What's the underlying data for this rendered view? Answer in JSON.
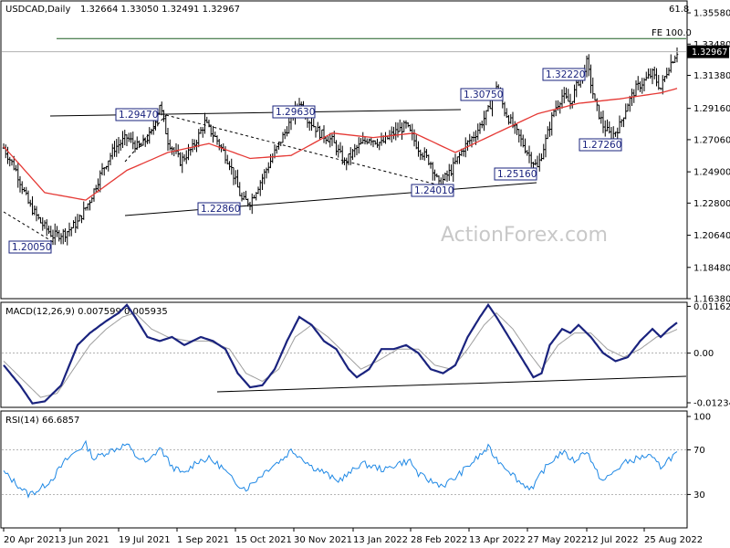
{
  "chart_data": [
    {
      "type": "ohlc",
      "title": "USDCAD,Daily",
      "ohlc_readout": "1.32664 1.33050 1.32491 1.32967",
      "last_price": "1.32967",
      "ylim": [
        1.1638,
        1.3638
      ],
      "y_ticks": [
        "1.35580",
        "1.33480",
        "1.31380",
        "1.29160",
        "1.27060",
        "1.24900",
        "1.22800",
        "1.20640",
        "1.18480",
        "1.16380"
      ],
      "x_labels": [
        "20 Apr 2021",
        "3 Jun 2021",
        "19 Jul 2021",
        "1 Sep 2021",
        "15 Oct 2021",
        "30 Nov 2021",
        "13 Jan 2022",
        "28 Feb 2022",
        "13 Apr 2022",
        "27 May 2022",
        "12 Jul 2022",
        "25 Aug 2022"
      ],
      "price_path": [
        [
          0,
          1.265
        ],
        [
          6,
          1.25
        ],
        [
          12,
          1.228
        ],
        [
          18,
          1.215
        ],
        [
          24,
          1.206
        ],
        [
          30,
          1.208
        ],
        [
          36,
          1.215
        ],
        [
          42,
          1.23
        ],
        [
          48,
          1.25
        ],
        [
          54,
          1.265
        ],
        [
          60,
          1.272
        ],
        [
          66,
          1.265
        ],
        [
          72,
          1.275
        ],
        [
          76,
          1.2947
        ],
        [
          80,
          1.27
        ],
        [
          86,
          1.256
        ],
        [
          92,
          1.265
        ],
        [
          98,
          1.282
        ],
        [
          104,
          1.27
        ],
        [
          110,
          1.255
        ],
        [
          116,
          1.23
        ],
        [
          120,
          1.2286
        ],
        [
          126,
          1.245
        ],
        [
          132,
          1.262
        ],
        [
          138,
          1.278
        ],
        [
          144,
          1.2963
        ],
        [
          148,
          1.285
        ],
        [
          154,
          1.275
        ],
        [
          160,
          1.27
        ],
        [
          166,
          1.255
        ],
        [
          172,
          1.265
        ],
        [
          178,
          1.272
        ],
        [
          184,
          1.268
        ],
        [
          190,
          1.275
        ],
        [
          196,
          1.28
        ],
        [
          202,
          1.265
        ],
        [
          208,
          1.255
        ],
        [
          212,
          1.2401
        ],
        [
          218,
          1.25
        ],
        [
          224,
          1.265
        ],
        [
          230,
          1.275
        ],
        [
          236,
          1.29
        ],
        [
          240,
          1.3075
        ],
        [
          244,
          1.29
        ],
        [
          250,
          1.275
        ],
        [
          256,
          1.26
        ],
        [
          260,
          1.2516
        ],
        [
          264,
          1.27
        ],
        [
          268,
          1.29
        ],
        [
          272,
          1.3
        ],
        [
          276,
          1.295
        ],
        [
          280,
          1.31
        ],
        [
          284,
          1.3222
        ],
        [
          288,
          1.295
        ],
        [
          292,
          1.28
        ],
        [
          296,
          1.2726
        ],
        [
          300,
          1.28
        ],
        [
          304,
          1.295
        ],
        [
          308,
          1.305
        ],
        [
          312,
          1.31
        ],
        [
          316,
          1.315
        ],
        [
          320,
          1.305
        ],
        [
          324,
          1.32
        ],
        [
          328,
          1.3297
        ]
      ],
      "moving_average": [
        [
          0,
          1.266
        ],
        [
          20,
          1.235
        ],
        [
          40,
          1.23
        ],
        [
          60,
          1.25
        ],
        [
          80,
          1.262
        ],
        [
          100,
          1.268
        ],
        [
          120,
          1.258
        ],
        [
          140,
          1.26
        ],
        [
          160,
          1.275
        ],
        [
          180,
          1.272
        ],
        [
          200,
          1.275
        ],
        [
          220,
          1.262
        ],
        [
          240,
          1.275
        ],
        [
          260,
          1.288
        ],
        [
          280,
          1.295
        ],
        [
          300,
          1.298
        ],
        [
          320,
          1.302
        ],
        [
          328,
          1.305
        ]
      ],
      "levels": [
        {
          "label": "1.20050",
          "value": 1.2005
        },
        {
          "label": "1.29470",
          "value": 1.2947
        },
        {
          "label": "1.22860",
          "value": 1.2286
        },
        {
          "label": "1.29630",
          "value": 1.2963
        },
        {
          "label": "1.24010",
          "value": 1.2401
        },
        {
          "label": "1.30750",
          "value": 1.3075
        },
        {
          "label": "1.25160",
          "value": 1.2516
        },
        {
          "label": "1.32220",
          "value": 1.3222
        },
        {
          "label": "1.27260",
          "value": 1.2726
        }
      ],
      "fe_label": "FE 100.0",
      "fe_value": 1.3385,
      "top_right_text": "61.8"
    },
    {
      "type": "line",
      "title": "MACD(12,26,9) 0.007599 0.005935",
      "ylim": [
        -0.01348,
        0.01263
      ],
      "y_ticks": [
        "0.011629",
        "0.00",
        "-0.012348"
      ],
      "macd": [
        [
          0,
          -0.003
        ],
        [
          8,
          -0.008
        ],
        [
          14,
          -0.0125
        ],
        [
          20,
          -0.012
        ],
        [
          28,
          -0.008
        ],
        [
          36,
          0.002
        ],
        [
          42,
          0.005
        ],
        [
          50,
          0.008
        ],
        [
          56,
          0.01
        ],
        [
          60,
          0.012
        ],
        [
          64,
          0.009
        ],
        [
          70,
          0.004
        ],
        [
          76,
          0.003
        ],
        [
          82,
          0.004
        ],
        [
          88,
          0.002
        ],
        [
          96,
          0.004
        ],
        [
          102,
          0.003
        ],
        [
          108,
          0.001
        ],
        [
          114,
          -0.005
        ],
        [
          120,
          -0.0085
        ],
        [
          126,
          -0.008
        ],
        [
          132,
          -0.004
        ],
        [
          138,
          0.003
        ],
        [
          144,
          0.009
        ],
        [
          150,
          0.007
        ],
        [
          156,
          0.003
        ],
        [
          162,
          0.001
        ],
        [
          168,
          -0.004
        ],
        [
          172,
          -0.006
        ],
        [
          178,
          -0.004
        ],
        [
          184,
          0.001
        ],
        [
          190,
          0.001
        ],
        [
          196,
          0.002
        ],
        [
          202,
          0.0
        ],
        [
          208,
          -0.004
        ],
        [
          214,
          -0.005
        ],
        [
          220,
          -0.003
        ],
        [
          226,
          0.004
        ],
        [
          232,
          0.009
        ],
        [
          236,
          0.012
        ],
        [
          240,
          0.009
        ],
        [
          246,
          0.004
        ],
        [
          252,
          -0.001
        ],
        [
          258,
          -0.006
        ],
        [
          262,
          -0.005
        ],
        [
          266,
          0.002
        ],
        [
          272,
          0.006
        ],
        [
          276,
          0.005
        ],
        [
          280,
          0.007
        ],
        [
          286,
          0.004
        ],
        [
          292,
          0.0
        ],
        [
          298,
          -0.002
        ],
        [
          304,
          -0.001
        ],
        [
          310,
          0.003
        ],
        [
          316,
          0.006
        ],
        [
          320,
          0.004
        ],
        [
          324,
          0.006
        ],
        [
          328,
          0.0076
        ]
      ],
      "signal": [
        [
          0,
          -0.002
        ],
        [
          10,
          -0.007
        ],
        [
          18,
          -0.011
        ],
        [
          26,
          -0.01
        ],
        [
          34,
          -0.004
        ],
        [
          42,
          0.002
        ],
        [
          50,
          0.006
        ],
        [
          58,
          0.009
        ],
        [
          64,
          0.01
        ],
        [
          72,
          0.006
        ],
        [
          80,
          0.004
        ],
        [
          90,
          0.003
        ],
        [
          100,
          0.003
        ],
        [
          110,
          0.001
        ],
        [
          118,
          -0.005
        ],
        [
          126,
          -0.007
        ],
        [
          134,
          -0.004
        ],
        [
          142,
          0.004
        ],
        [
          150,
          0.007
        ],
        [
          158,
          0.004
        ],
        [
          166,
          0.0
        ],
        [
          174,
          -0.004
        ],
        [
          182,
          -0.002
        ],
        [
          192,
          0.001
        ],
        [
          202,
          0.001
        ],
        [
          210,
          -0.003
        ],
        [
          218,
          -0.004
        ],
        [
          226,
          0.001
        ],
        [
          234,
          0.007
        ],
        [
          240,
          0.01
        ],
        [
          248,
          0.006
        ],
        [
          256,
          0.0
        ],
        [
          262,
          -0.004
        ],
        [
          270,
          0.002
        ],
        [
          278,
          0.005
        ],
        [
          286,
          0.005
        ],
        [
          294,
          0.001
        ],
        [
          302,
          -0.001
        ],
        [
          310,
          0.001
        ],
        [
          318,
          0.004
        ],
        [
          324,
          0.005
        ],
        [
          328,
          0.0059
        ]
      ]
    },
    {
      "type": "line",
      "title": "RSI(14) 66.6857",
      "ylim": [
        0,
        100
      ],
      "y_ticks": [
        "100",
        "70",
        "30",
        "0"
      ],
      "rsi": [
        [
          0,
          50
        ],
        [
          6,
          40
        ],
        [
          12,
          30
        ],
        [
          18,
          35
        ],
        [
          24,
          45
        ],
        [
          30,
          60
        ],
        [
          36,
          70
        ],
        [
          40,
          75
        ],
        [
          44,
          62
        ],
        [
          50,
          68
        ],
        [
          56,
          72
        ],
        [
          60,
          75
        ],
        [
          64,
          65
        ],
        [
          70,
          58
        ],
        [
          76,
          72
        ],
        [
          82,
          55
        ],
        [
          88,
          48
        ],
        [
          94,
          60
        ],
        [
          100,
          62
        ],
        [
          106,
          55
        ],
        [
          112,
          42
        ],
        [
          118,
          35
        ],
        [
          124,
          45
        ],
        [
          130,
          55
        ],
        [
          136,
          62
        ],
        [
          140,
          70
        ],
        [
          146,
          62
        ],
        [
          150,
          55
        ],
        [
          156,
          50
        ],
        [
          162,
          42
        ],
        [
          168,
          48
        ],
        [
          174,
          58
        ],
        [
          180,
          55
        ],
        [
          186,
          52
        ],
        [
          192,
          58
        ],
        [
          198,
          60
        ],
        [
          202,
          48
        ],
        [
          208,
          42
        ],
        [
          214,
          38
        ],
        [
          220,
          45
        ],
        [
          226,
          55
        ],
        [
          232,
          65
        ],
        [
          236,
          72
        ],
        [
          240,
          62
        ],
        [
          246,
          52
        ],
        [
          252,
          40
        ],
        [
          258,
          35
        ],
        [
          262,
          50
        ],
        [
          268,
          62
        ],
        [
          272,
          68
        ],
        [
          278,
          60
        ],
        [
          284,
          70
        ],
        [
          288,
          52
        ],
        [
          292,
          42
        ],
        [
          296,
          48
        ],
        [
          302,
          58
        ],
        [
          308,
          62
        ],
        [
          314,
          65
        ],
        [
          320,
          55
        ],
        [
          324,
          62
        ],
        [
          328,
          66.7
        ]
      ]
    }
  ],
  "watermark": "ActionForex.com"
}
